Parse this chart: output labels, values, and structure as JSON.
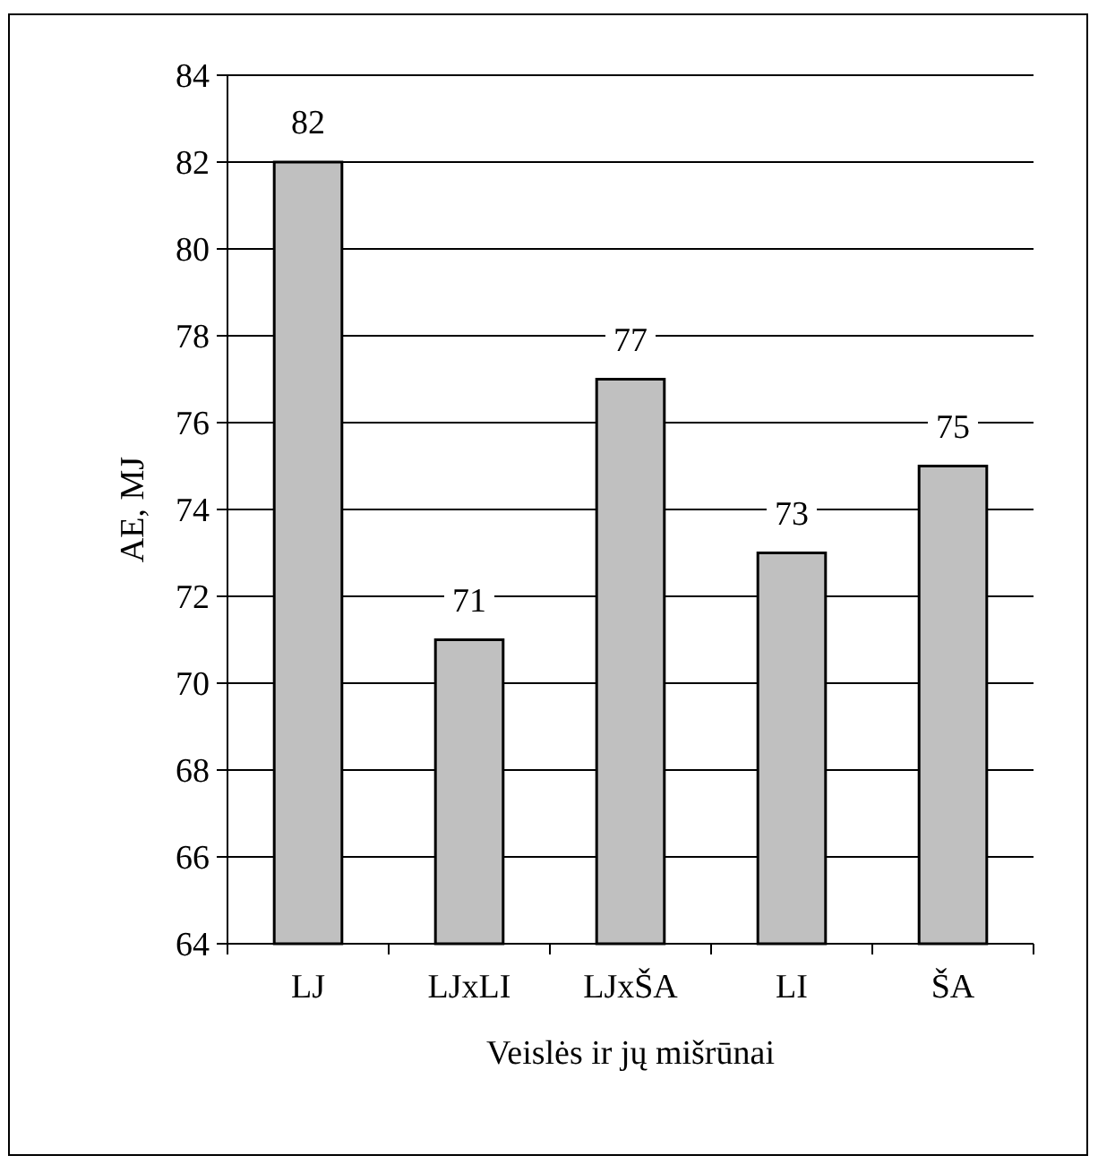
{
  "chart_data": {
    "type": "bar",
    "xlabel": "Veislės ir jų mišrūnai",
    "ylabel": "AE, MJ",
    "categories": [
      "LJ",
      "LJxLI",
      "LJxŠA",
      "LI",
      "ŠA"
    ],
    "values": [
      82,
      71,
      77,
      73,
      75
    ],
    "color": "#c0c0c0",
    "ylim": [
      64,
      84
    ],
    "yticks": [
      64,
      66,
      68,
      70,
      72,
      74,
      76,
      78,
      80,
      82,
      84
    ],
    "grid": "y",
    "data_labels": true
  }
}
